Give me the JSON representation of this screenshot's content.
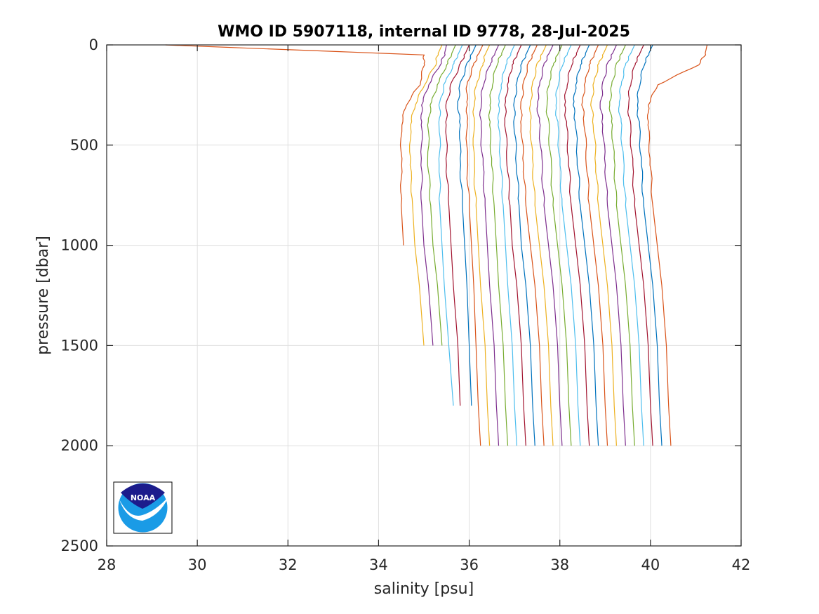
{
  "chart_data": {
    "type": "line",
    "title": "WMO ID 5907118, internal ID 9778, 28-Jul-2025",
    "xlabel": "salinity [psu]",
    "ylabel": "pressure [dbar]",
    "xlim": [
      28,
      42
    ],
    "ylim": [
      0,
      2500
    ],
    "y_reversed": true,
    "xticks": [
      "28",
      "30",
      "32",
      "34",
      "36",
      "38",
      "40",
      "42"
    ],
    "yticks": [
      "0",
      "500",
      "1000",
      "1500",
      "2000",
      "2500"
    ],
    "grid": true,
    "legend": "none",
    "logo": "noaa-logo",
    "note": "Waterfall of successive salinity profiles; each profile offset in salinity so curves are side by side. Values below are salinity read from the axes at pressures 0, 50, 100, 200, 300, 400, 600, 800, 1000, 1200, 1500, 1800, 2000 dbar (null where the profile ends).",
    "pressure_levels": [
      0,
      50,
      100,
      200,
      300,
      400,
      600,
      800,
      1000,
      1200,
      1500,
      1800,
      2000
    ],
    "series": [
      {
        "color": "#D95319",
        "values": [
          29.3,
          35.0,
          35.0,
          34.9,
          34.6,
          34.5,
          34.5,
          34.5,
          34.55,
          null,
          null,
          null,
          null
        ]
      },
      {
        "color": "#EDB120",
        "values": [
          35.4,
          35.3,
          35.25,
          35.0,
          34.8,
          34.7,
          34.7,
          34.75,
          34.8,
          34.9,
          35.0,
          null,
          null
        ]
      },
      {
        "color": "#7E2F8E",
        "values": [
          35.5,
          35.45,
          35.35,
          35.1,
          34.95,
          34.95,
          34.95,
          34.95,
          35.0,
          35.1,
          35.2,
          null,
          null
        ]
      },
      {
        "color": "#77AC30",
        "values": [
          35.7,
          35.6,
          35.5,
          35.3,
          35.15,
          35.1,
          35.1,
          35.15,
          35.2,
          35.3,
          35.4,
          null,
          null
        ]
      },
      {
        "color": "#4DBEEE",
        "values": [
          35.85,
          35.75,
          35.65,
          35.45,
          35.35,
          35.35,
          35.35,
          35.35,
          35.4,
          35.45,
          35.55,
          35.65,
          null
        ]
      },
      {
        "color": "#A2142F",
        "values": [
          36.0,
          35.9,
          35.8,
          35.6,
          35.5,
          35.5,
          35.5,
          35.55,
          35.6,
          35.65,
          35.75,
          35.8,
          null
        ]
      },
      {
        "color": "#0072BD",
        "values": [
          36.15,
          36.05,
          35.95,
          35.8,
          35.75,
          35.8,
          35.8,
          35.85,
          35.9,
          35.95,
          36.0,
          36.05,
          null
        ]
      },
      {
        "color": "#D95319",
        "values": [
          36.3,
          36.2,
          36.1,
          35.95,
          35.95,
          35.95,
          35.95,
          36.0,
          36.05,
          36.1,
          36.15,
          36.2,
          36.25
        ]
      },
      {
        "color": "#EDB120",
        "values": [
          36.45,
          36.35,
          36.3,
          36.15,
          36.1,
          36.1,
          36.1,
          36.15,
          36.2,
          36.25,
          36.35,
          36.4,
          36.45
        ]
      },
      {
        "color": "#7E2F8E",
        "values": [
          36.65,
          36.55,
          36.45,
          36.3,
          36.25,
          36.25,
          36.3,
          36.35,
          36.4,
          36.45,
          36.55,
          36.6,
          36.65
        ]
      },
      {
        "color": "#77AC30",
        "values": [
          36.8,
          36.7,
          36.6,
          36.5,
          36.45,
          36.45,
          36.5,
          36.55,
          36.6,
          36.65,
          36.75,
          36.8,
          36.85
        ]
      },
      {
        "color": "#4DBEEE",
        "values": [
          37.0,
          36.9,
          36.8,
          36.7,
          36.65,
          36.65,
          36.7,
          36.75,
          36.8,
          36.85,
          36.95,
          37.0,
          37.05
        ]
      },
      {
        "color": "#A2142F",
        "values": [
          37.15,
          37.05,
          36.95,
          36.85,
          36.8,
          36.8,
          36.85,
          36.9,
          36.95,
          37.05,
          37.15,
          37.2,
          37.25
        ]
      },
      {
        "color": "#0072BD",
        "values": [
          37.35,
          37.25,
          37.15,
          37.05,
          37.0,
          37.0,
          37.05,
          37.1,
          37.15,
          37.25,
          37.35,
          37.4,
          37.45
        ]
      },
      {
        "color": "#D95319",
        "values": [
          37.5,
          37.4,
          37.3,
          37.2,
          37.15,
          37.15,
          37.2,
          37.25,
          37.35,
          37.45,
          37.55,
          37.6,
          37.65
        ]
      },
      {
        "color": "#EDB120",
        "values": [
          37.7,
          37.6,
          37.5,
          37.4,
          37.35,
          37.35,
          37.4,
          37.45,
          37.55,
          37.65,
          37.75,
          37.8,
          37.85
        ]
      },
      {
        "color": "#7E2F8E",
        "values": [
          37.85,
          37.75,
          37.65,
          37.55,
          37.5,
          37.55,
          37.6,
          37.65,
          37.75,
          37.85,
          37.95,
          38.0,
          38.05
        ]
      },
      {
        "color": "#77AC30",
        "values": [
          38.05,
          37.95,
          37.85,
          37.75,
          37.7,
          37.75,
          37.8,
          37.85,
          37.95,
          38.05,
          38.15,
          38.2,
          38.25
        ]
      },
      {
        "color": "#4DBEEE",
        "values": [
          38.25,
          38.15,
          38.05,
          37.95,
          37.9,
          37.95,
          38.0,
          38.05,
          38.15,
          38.25,
          38.35,
          38.4,
          38.45
        ]
      },
      {
        "color": "#A2142F",
        "values": [
          38.45,
          38.35,
          38.25,
          38.15,
          38.1,
          38.15,
          38.2,
          38.25,
          38.35,
          38.45,
          38.55,
          38.6,
          38.65
        ]
      },
      {
        "color": "#0072BD",
        "values": [
          38.65,
          38.55,
          38.45,
          38.35,
          38.3,
          38.35,
          38.4,
          38.45,
          38.55,
          38.65,
          38.75,
          38.8,
          38.85
        ]
      },
      {
        "color": "#D95319",
        "values": [
          38.85,
          38.75,
          38.65,
          38.55,
          38.5,
          38.55,
          38.6,
          38.65,
          38.75,
          38.85,
          38.95,
          39.0,
          39.05
        ]
      },
      {
        "color": "#EDB120",
        "values": [
          39.05,
          38.95,
          38.85,
          38.75,
          38.7,
          38.75,
          38.8,
          38.85,
          38.95,
          39.05,
          39.15,
          39.2,
          39.25
        ]
      },
      {
        "color": "#7E2F8E",
        "values": [
          39.25,
          39.15,
          39.05,
          38.95,
          38.9,
          38.95,
          39.0,
          39.05,
          39.15,
          39.25,
          39.35,
          39.4,
          39.45
        ]
      },
      {
        "color": "#77AC30",
        "values": [
          39.45,
          39.35,
          39.25,
          39.15,
          39.1,
          39.15,
          39.2,
          39.25,
          39.35,
          39.45,
          39.55,
          39.6,
          39.65
        ]
      },
      {
        "color": "#4DBEEE",
        "values": [
          39.65,
          39.55,
          39.45,
          39.35,
          39.3,
          39.35,
          39.4,
          39.45,
          39.55,
          39.65,
          39.75,
          39.8,
          39.85
        ]
      },
      {
        "color": "#A2142F",
        "values": [
          39.85,
          39.75,
          39.65,
          39.55,
          39.5,
          39.55,
          39.6,
          39.65,
          39.75,
          39.85,
          39.95,
          40.0,
          40.05
        ]
      },
      {
        "color": "#0072BD",
        "values": [
          40.05,
          39.95,
          39.85,
          39.75,
          39.7,
          39.75,
          39.8,
          39.85,
          39.95,
          40.05,
          40.15,
          40.2,
          40.25
        ]
      },
      {
        "color": "#D95319",
        "values": [
          41.25,
          41.2,
          41.05,
          40.15,
          39.95,
          39.95,
          40.0,
          40.05,
          40.15,
          40.25,
          40.35,
          40.4,
          40.45
        ]
      }
    ]
  }
}
